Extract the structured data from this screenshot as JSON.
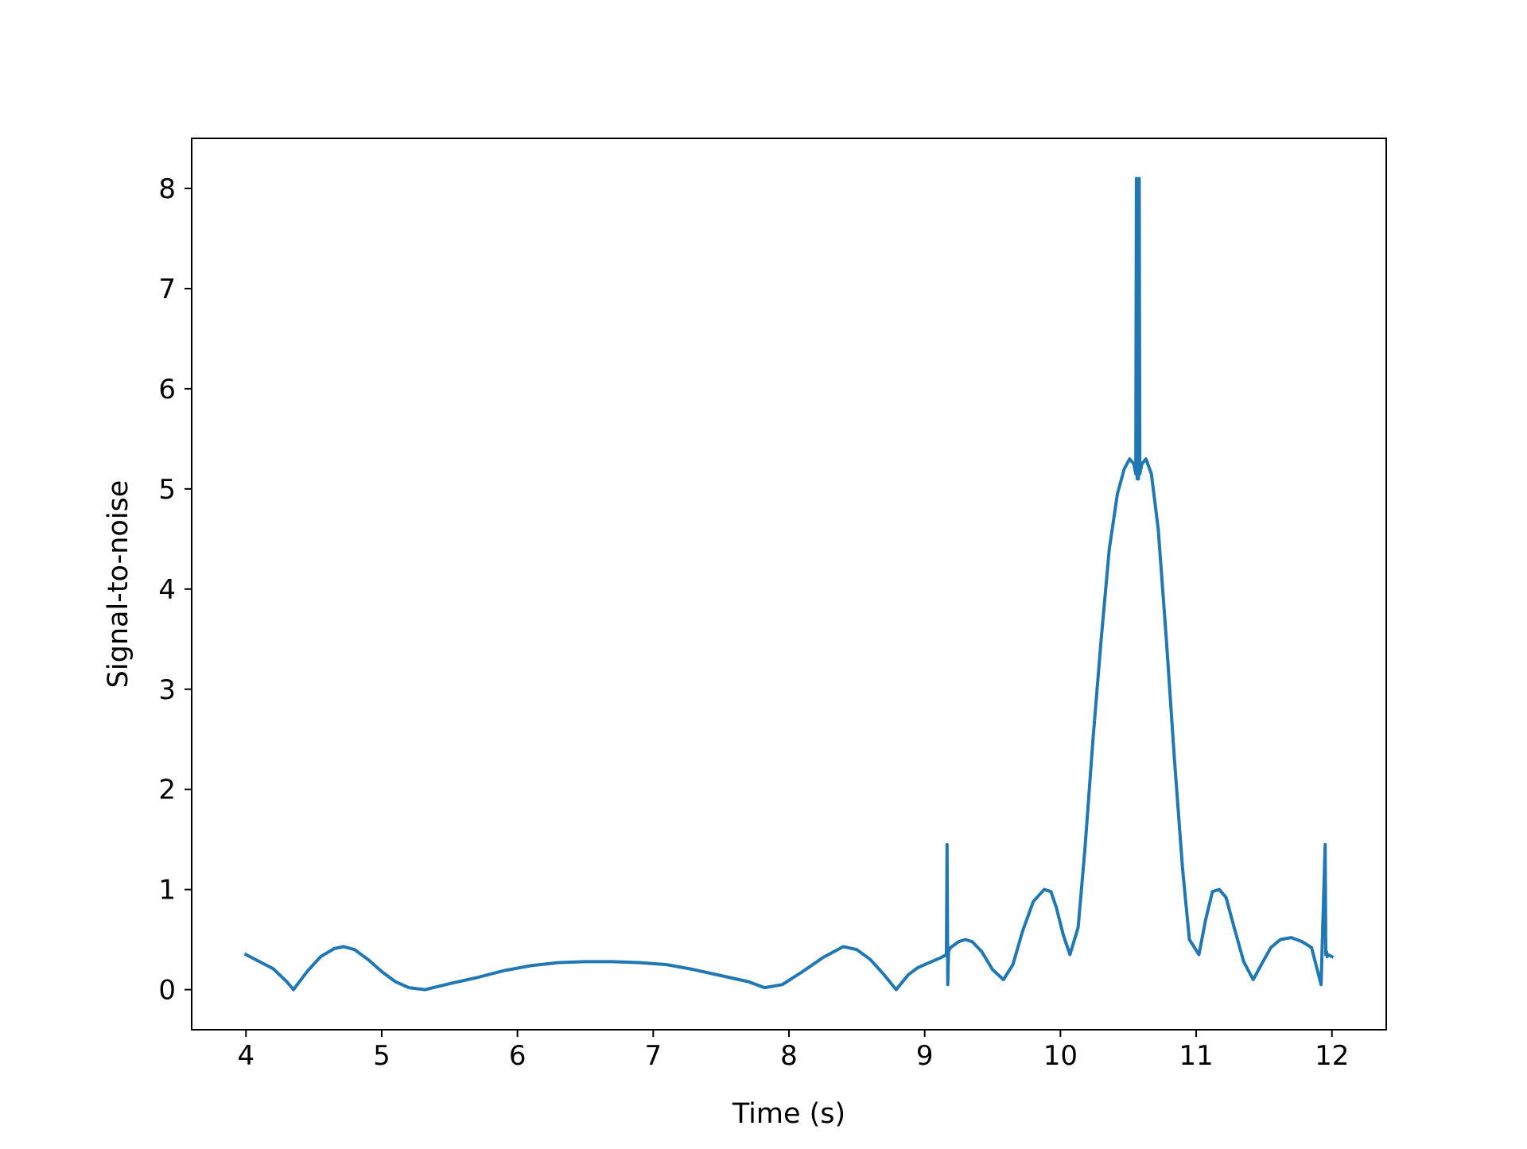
{
  "chart_data": {
    "type": "line",
    "title": "",
    "xlabel": "Time (s)",
    "ylabel": "Signal-to-noise",
    "xlim": [
      3.6,
      12.4
    ],
    "ylim": [
      -0.4,
      8.5
    ],
    "xticks": [
      4,
      5,
      6,
      7,
      8,
      9,
      10,
      11,
      12
    ],
    "yticks": [
      0,
      1,
      2,
      3,
      4,
      5,
      6,
      7,
      8
    ],
    "grid": false,
    "legend": "none",
    "series": [
      {
        "color": "#1f77b4",
        "x": [
          4.0,
          4.1,
          4.2,
          4.3,
          4.35,
          4.45,
          4.55,
          4.65,
          4.72,
          4.8,
          4.9,
          5.0,
          5.1,
          5.2,
          5.32,
          5.5,
          5.7,
          5.9,
          6.1,
          6.3,
          6.5,
          6.7,
          6.9,
          7.1,
          7.3,
          7.5,
          7.7,
          7.82,
          7.95,
          8.1,
          8.25,
          8.4,
          8.5,
          8.6,
          8.7,
          8.79,
          8.88,
          8.95,
          9.05,
          9.12,
          9.16,
          9.165,
          9.17,
          9.175,
          9.19,
          9.25,
          9.3,
          9.35,
          9.42,
          9.5,
          9.58,
          9.65,
          9.72,
          9.8,
          9.88,
          9.93,
          9.97,
          10.02,
          10.07,
          10.13,
          10.18,
          10.24,
          10.3,
          10.36,
          10.42,
          10.47,
          10.51,
          10.54,
          10.555,
          10.56,
          10.565,
          10.57,
          10.575,
          10.58,
          10.585,
          10.6,
          10.63,
          10.67,
          10.72,
          10.78,
          10.84,
          10.9,
          10.95,
          11.02,
          11.07,
          11.12,
          11.17,
          11.22,
          11.28,
          11.35,
          11.42,
          11.48,
          11.55,
          11.62,
          11.7,
          11.78,
          11.85,
          11.92,
          11.95,
          11.955,
          11.96,
          11.965,
          11.97,
          12.0
        ],
        "y": [
          0.35,
          0.28,
          0.21,
          0.08,
          0.0,
          0.18,
          0.33,
          0.41,
          0.43,
          0.4,
          0.3,
          0.18,
          0.08,
          0.02,
          0.0,
          0.06,
          0.12,
          0.19,
          0.24,
          0.27,
          0.28,
          0.28,
          0.27,
          0.25,
          0.2,
          0.14,
          0.08,
          0.02,
          0.05,
          0.18,
          0.32,
          0.43,
          0.4,
          0.3,
          0.15,
          0.0,
          0.15,
          0.22,
          0.28,
          0.32,
          0.35,
          1.45,
          0.05,
          0.38,
          0.42,
          0.48,
          0.5,
          0.48,
          0.38,
          0.2,
          0.1,
          0.25,
          0.58,
          0.88,
          1.0,
          0.98,
          0.82,
          0.55,
          0.35,
          0.62,
          1.4,
          2.5,
          3.5,
          4.4,
          4.95,
          5.2,
          5.3,
          5.25,
          5.15,
          8.1,
          5.1,
          5.3,
          5.1,
          8.1,
          5.15,
          5.25,
          5.3,
          5.15,
          4.6,
          3.5,
          2.3,
          1.2,
          0.5,
          0.35,
          0.7,
          0.98,
          1.0,
          0.92,
          0.62,
          0.28,
          0.1,
          0.25,
          0.42,
          0.5,
          0.52,
          0.48,
          0.42,
          0.05,
          1.45,
          0.35,
          0.38,
          0.33,
          0.35,
          0.33
        ]
      }
    ]
  }
}
